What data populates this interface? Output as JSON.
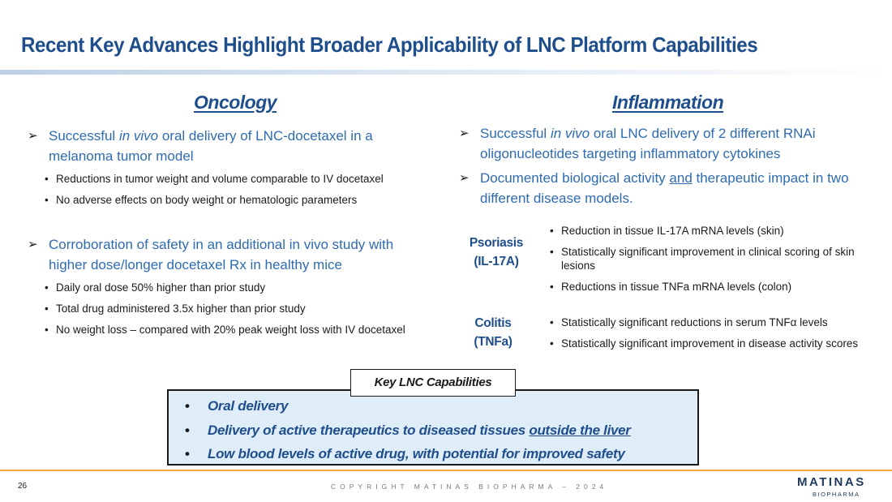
{
  "title": "Recent Key Advances Highlight Broader Applicability of LNC Platform Capabilities",
  "oncology": {
    "heading": "Oncology",
    "point1": {
      "pre": "Successful ",
      "italic": "in vivo",
      "post": " oral delivery of LNC-docetaxel in a melanoma tumor model",
      "bullets": [
        "Reductions in tumor weight and volume comparable to IV docetaxel",
        "No adverse effects on body weight or hematologic parameters"
      ]
    },
    "point2": {
      "text": "Corroboration of safety in an additional in vivo study with higher dose/longer docetaxel Rx in healthy mice",
      "bullets": [
        "Daily oral dose 50% higher than prior study",
        "Total drug administered 3.5x higher than prior study",
        "No weight loss – compared with 20% peak weight loss with IV docetaxel"
      ]
    }
  },
  "inflammation": {
    "heading": "Inflammation",
    "point1": {
      "pre": "Successful ",
      "italic": "in vivo",
      "post": " oral LNC delivery of 2 different RNAi oligonucleotides targeting inflammatory cytokines"
    },
    "point2": {
      "pre": "Documented biological activity ",
      "underline": "and",
      "post": " therapeutic impact in two different disease models."
    },
    "psoriasis": {
      "label_line1": "Psoriasis",
      "label_line2": "(IL-17A)",
      "bullets": [
        "Reduction in tissue IL-17A mRNA levels (skin)",
        "Statistically significant improvement in clinical scoring of skin lesions",
        "Reductions in tissue TNFa mRNA levels (colon)"
      ]
    },
    "colitis": {
      "label_line1": "Colitis",
      "label_line2": "(TNFa)",
      "bullets": [
        "Statistically significant reductions in serum TNFα levels",
        "Statistically significant improvement in disease activity scores"
      ]
    }
  },
  "capabilities": {
    "tag": "Key LNC Capabilities",
    "item1": "Oral delivery",
    "item2_pre": "Delivery of active therapeutics to diseased tissues ",
    "item2_underline": "outside the liver",
    "item3": "Low blood levels of active drug, with potential for improved safety"
  },
  "footer": {
    "page_number": "26",
    "copyright": "COPYRIGHT MATINAS BIOPHARMA – 2024",
    "logo_main": "MATINAS",
    "logo_sub": "BIOPHARMA"
  },
  "symbols": {
    "arrow": "➢",
    "dot": "•"
  },
  "colors": {
    "title": "#1f4e8c",
    "point_text": "#2e6bb0",
    "box_fill": "#deedf8",
    "footer_rule": "#f0a93a"
  }
}
